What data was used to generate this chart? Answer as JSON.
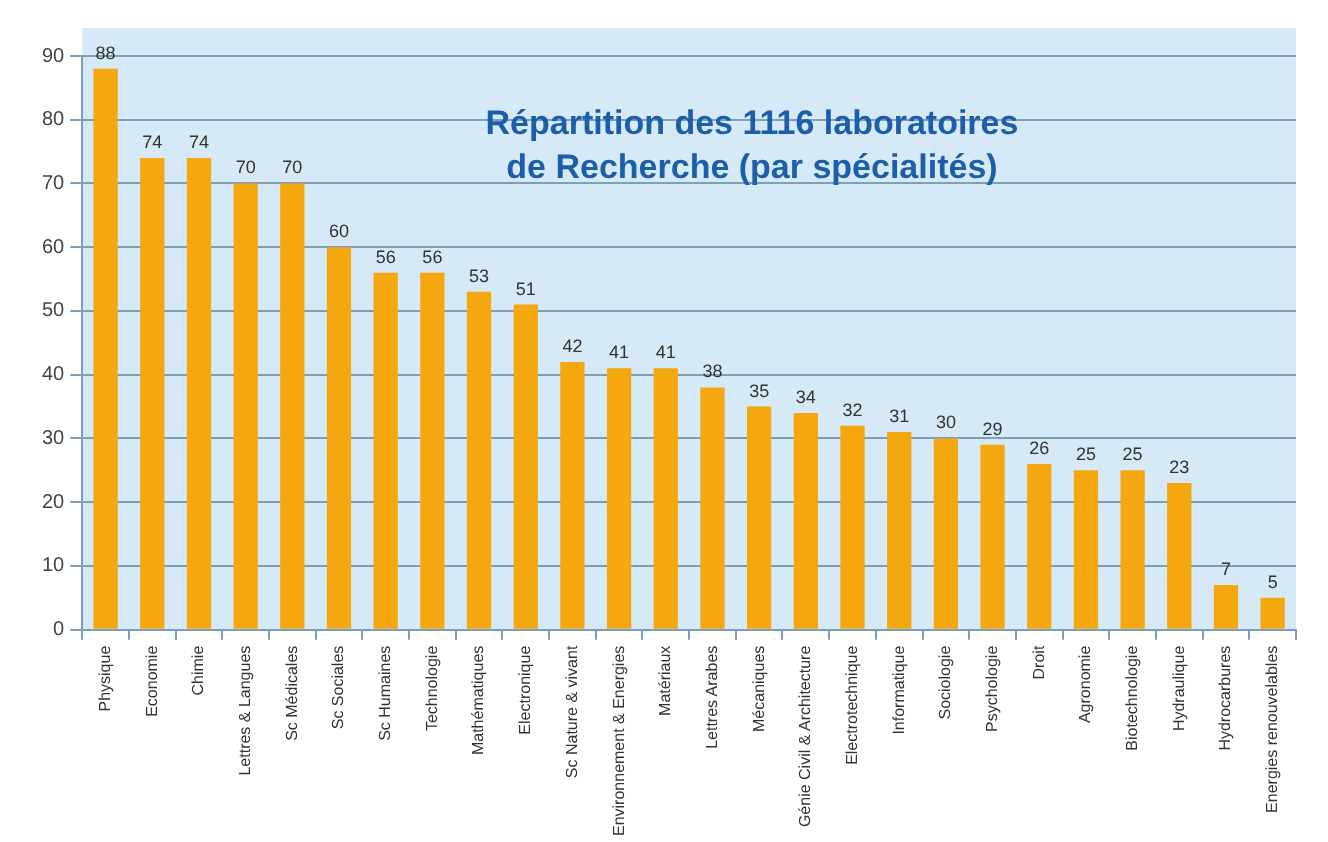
{
  "chart_data": {
    "type": "bar",
    "title": "Répartition des 1116 laboratoires de Recherche (par spécialités)",
    "categories": [
      "Physique",
      "Economie",
      "Chimie",
      "Lettres & Langues",
      "Sc Médicales",
      "Sc Sociales",
      "Sc Humaines",
      "Technologie",
      "Mathématiques",
      "Electronique",
      "Sc Nature & vivant",
      "Environnement & Energies",
      "Matériaux",
      "Lettres Arabes",
      "Mécaniques",
      "Génie Civil & Architecture",
      "Electrotechnique",
      "Informatique",
      "Sociologie",
      "Psychologie",
      "Droit",
      "Agronomie",
      "Biotechnologie",
      "Hydraulique",
      "Hydrocarbures",
      "Energies renouvelables"
    ],
    "values": [
      88,
      74,
      74,
      70,
      70,
      60,
      56,
      56,
      53,
      51,
      42,
      41,
      41,
      38,
      35,
      34,
      32,
      31,
      30,
      29,
      26,
      25,
      25,
      23,
      7,
      5
    ],
    "color": "#f5a70f",
    "ylim": [
      0,
      90
    ],
    "yticks": [
      0,
      10,
      20,
      30,
      40,
      50,
      60,
      70,
      80,
      90
    ],
    "grid": "y",
    "legend": false,
    "data_labels": true
  }
}
